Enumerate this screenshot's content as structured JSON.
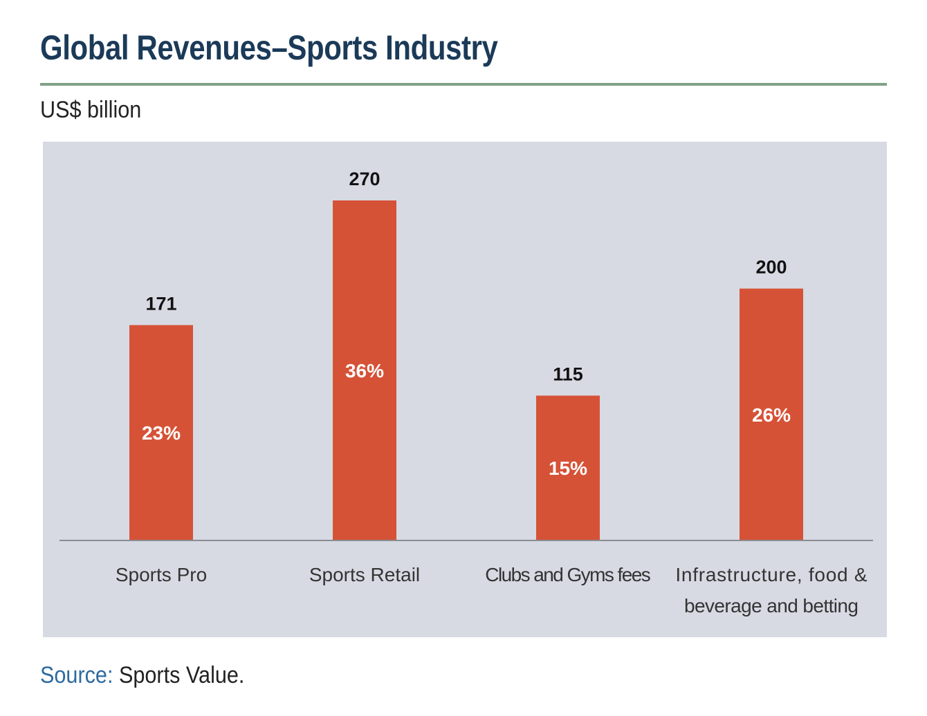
{
  "header": {
    "title": "Global Revenues–Sports Industry",
    "subtitle": "US$ billion"
  },
  "footer": {
    "source_label": "Source:",
    "source_text": " Sports Value."
  },
  "colors": {
    "title": "#1b3a58",
    "rule": "#7fa186",
    "plot_background": "#d7dae3",
    "bar": "#d65237",
    "source_label": "#2d6aa0"
  },
  "chart_data": {
    "type": "bar",
    "title": "Global Revenues–Sports Industry",
    "ylabel": "US$ billion",
    "xlabel": "",
    "categories": [
      [
        "Sports Pro"
      ],
      [
        "Sports Retail"
      ],
      [
        "Clubs and Gyms fees"
      ],
      [
        "Infrastructure, food &",
        "beverage and betting"
      ]
    ],
    "values": [
      171,
      270,
      115,
      200
    ],
    "value_labels": [
      "171",
      "270",
      "115",
      "200"
    ],
    "share_labels": [
      "23%",
      "36%",
      "15%",
      "26%"
    ],
    "ylim": [
      0,
      300
    ],
    "grid": false,
    "legend": "none"
  }
}
